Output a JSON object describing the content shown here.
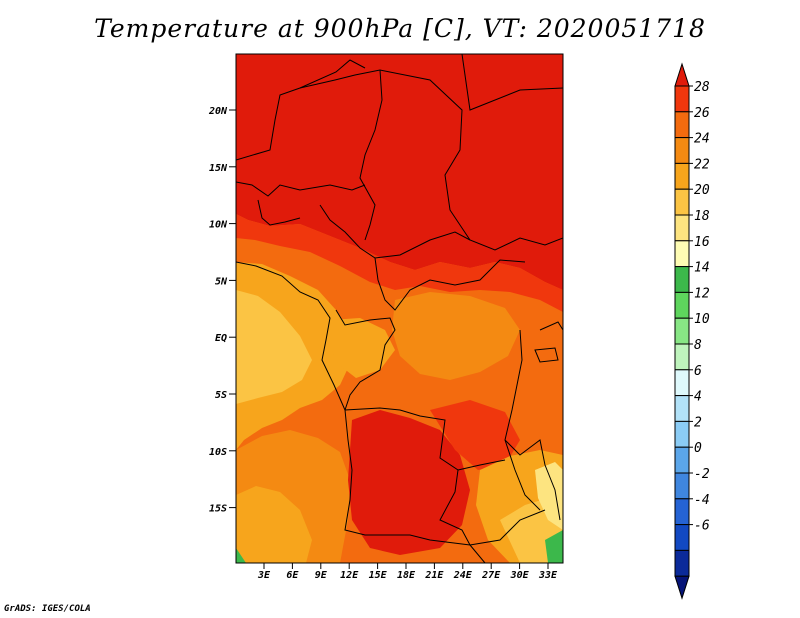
{
  "title": "Temperature at 900hPa [C], VT: 2020051718",
  "footer": "GrADS: IGES/COLA",
  "map": {
    "lat_ticks": [
      "20N",
      "15N",
      "10N",
      "5N",
      "EQ",
      "5S",
      "10S",
      "15S"
    ],
    "lon_ticks": [
      "3E",
      "6E",
      "9E",
      "12E",
      "15E",
      "18E",
      "21E",
      "24E",
      "27E",
      "30E",
      "33E"
    ],
    "lat_range": [
      -20,
      25
    ],
    "lon_range": [
      0,
      35
    ]
  },
  "colorbar": {
    "labels": [
      "28",
      "26",
      "24",
      "22",
      "20",
      "18",
      "16",
      "14",
      "12",
      "10",
      "8",
      "6",
      "4",
      "2",
      "0",
      "-2",
      "-4",
      "-6"
    ],
    "colors": [
      "#e01b0b",
      "#f0370d",
      "#f36b0f",
      "#f48a12",
      "#f7a51c",
      "#fbc444",
      "#fde480",
      "#fefcb4",
      "#3cb84b",
      "#5ed55d",
      "#88e685",
      "#bff4bd",
      "#dff9fc",
      "#b2e2f8",
      "#8bccf5",
      "#5ba6ea",
      "#3f86df",
      "#2563d4",
      "#1249c2",
      "#0b2a9a",
      "#061478"
    ]
  },
  "colors": {
    "border": "#000000",
    "background": "#ffffff"
  }
}
